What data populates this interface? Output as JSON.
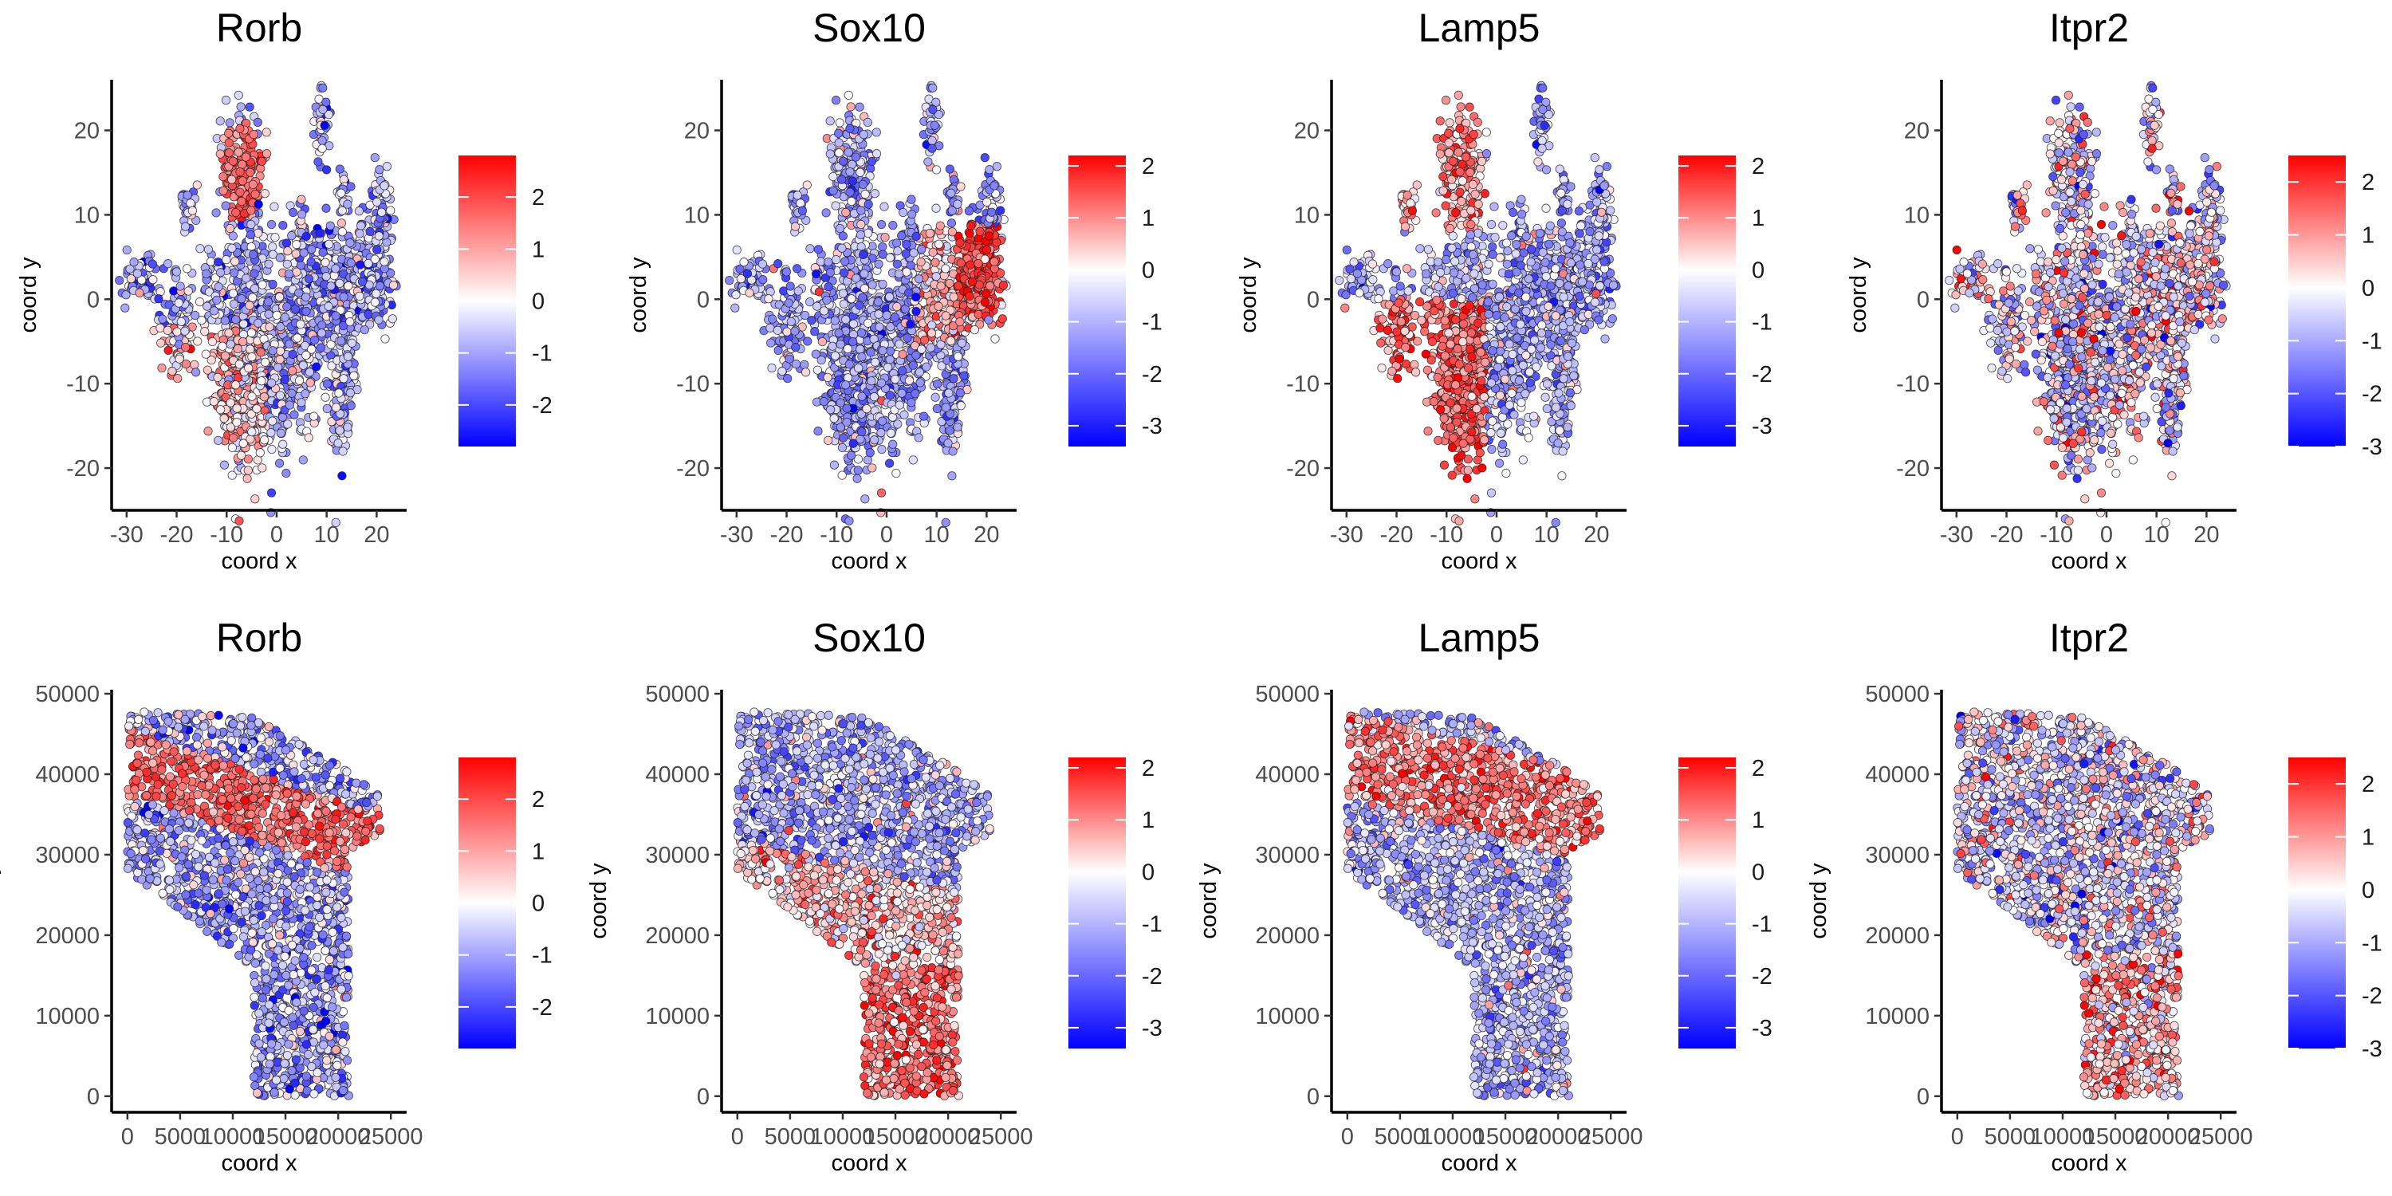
{
  "chart_data": [
    {
      "type": "scatter",
      "title": "Rorb",
      "xlabel": "coord x",
      "ylabel": "coord y",
      "xlim": [
        -33,
        26
      ],
      "ylim": [
        -25,
        26
      ],
      "xticks": [
        -30,
        -20,
        -10,
        0,
        10,
        20
      ],
      "yticks": [
        -20,
        -10,
        0,
        10,
        20
      ],
      "xtick_labels": [
        "-30",
        "-20",
        "-10",
        "0",
        "10",
        "20"
      ],
      "ytick_labels": [
        "-20",
        "-10",
        "0",
        "10",
        "20"
      ],
      "colorbar": {
        "min": -2.8,
        "max": 2.8,
        "ticks": [
          2,
          1,
          0,
          -1,
          -2
        ],
        "tick_labels": [
          "2",
          "1",
          "0",
          "-1",
          "-2"
        ],
        "colors": [
          "#0000ff",
          "#ffffff",
          "#ff0000"
        ]
      },
      "grid": false,
      "legend": "right"
    },
    {
      "type": "scatter",
      "title": "Sox10",
      "xlabel": "coord x",
      "ylabel": "coord y",
      "xlim": [
        -33,
        26
      ],
      "ylim": [
        -25,
        26
      ],
      "xticks": [
        -30,
        -20,
        -10,
        0,
        10,
        20
      ],
      "yticks": [
        -20,
        -10,
        0,
        10,
        20
      ],
      "xtick_labels": [
        "-30",
        "-20",
        "-10",
        "0",
        "10",
        "20"
      ],
      "ytick_labels": [
        "-20",
        "-10",
        "0",
        "10",
        "20"
      ],
      "colorbar": {
        "min": -3.4,
        "max": 2.2,
        "ticks": [
          2,
          1,
          0,
          -1,
          -2,
          -3
        ],
        "tick_labels": [
          "2",
          "1",
          "0",
          "-1",
          "-2",
          "-3"
        ],
        "colors": [
          "#0000ff",
          "#ffffff",
          "#ff0000"
        ]
      },
      "grid": false,
      "legend": "right"
    },
    {
      "type": "scatter",
      "title": "Lamp5",
      "xlabel": "coord x",
      "ylabel": "coord y",
      "xlim": [
        -33,
        26
      ],
      "ylim": [
        -25,
        26
      ],
      "xticks": [
        -30,
        -20,
        -10,
        0,
        10,
        20
      ],
      "yticks": [
        -20,
        -10,
        0,
        10,
        20
      ],
      "xtick_labels": [
        "-30",
        "-20",
        "-10",
        "0",
        "10",
        "20"
      ],
      "ytick_labels": [
        "-20",
        "-10",
        "0",
        "10",
        "20"
      ],
      "colorbar": {
        "min": -3.4,
        "max": 2.2,
        "ticks": [
          2,
          1,
          0,
          -1,
          -2,
          -3
        ],
        "tick_labels": [
          "2",
          "1",
          "0",
          "-1",
          "-2",
          "-3"
        ],
        "colors": [
          "#0000ff",
          "#ffffff",
          "#ff0000"
        ]
      },
      "grid": false,
      "legend": "right"
    },
    {
      "type": "scatter",
      "title": "Itpr2",
      "xlabel": "coord x",
      "ylabel": "coord y",
      "xlim": [
        -33,
        26
      ],
      "ylim": [
        -25,
        26
      ],
      "xticks": [
        -30,
        -20,
        -10,
        0,
        10,
        20
      ],
      "yticks": [
        -20,
        -10,
        0,
        10,
        20
      ],
      "xtick_labels": [
        "-30",
        "-20",
        "-10",
        "0",
        "10",
        "20"
      ],
      "ytick_labels": [
        "-20",
        "-10",
        "0",
        "10",
        "20"
      ],
      "colorbar": {
        "min": -3.0,
        "max": 2.5,
        "ticks": [
          2,
          1,
          0,
          -1,
          -2,
          -3
        ],
        "tick_labels": [
          "2",
          "1",
          "0",
          "-1",
          "-2",
          "-3"
        ],
        "colors": [
          "#0000ff",
          "#ffffff",
          "#ff0000"
        ]
      },
      "grid": false,
      "legend": "right"
    },
    {
      "type": "scatter",
      "title": "Rorb",
      "xlabel": "coord x",
      "ylabel": "coord y",
      "xlim": [
        -1500,
        26500
      ],
      "ylim": [
        -2000,
        50500
      ],
      "xticks": [
        0,
        5000,
        10000,
        15000,
        20000,
        25000
      ],
      "yticks": [
        0,
        10000,
        20000,
        30000,
        40000,
        50000
      ],
      "xtick_labels": [
        "0",
        "5000",
        "10000",
        "15000",
        "20000",
        "25000"
      ],
      "ytick_labels": [
        "0",
        "10000",
        "20000",
        "30000",
        "40000",
        "50000"
      ],
      "colorbar": {
        "min": -2.8,
        "max": 2.8,
        "ticks": [
          2,
          1,
          0,
          -1,
          -2
        ],
        "tick_labels": [
          "2",
          "1",
          "0",
          "-1",
          "-2"
        ],
        "colors": [
          "#0000ff",
          "#ffffff",
          "#ff0000"
        ]
      },
      "grid": false,
      "legend": "right"
    },
    {
      "type": "scatter",
      "title": "Sox10",
      "xlabel": "coord x",
      "ylabel": "coord y",
      "xlim": [
        -1500,
        26500
      ],
      "ylim": [
        -2000,
        50500
      ],
      "xticks": [
        0,
        5000,
        10000,
        15000,
        20000,
        25000
      ],
      "yticks": [
        0,
        10000,
        20000,
        30000,
        40000,
        50000
      ],
      "xtick_labels": [
        "0",
        "5000",
        "10000",
        "15000",
        "20000",
        "25000"
      ],
      "ytick_labels": [
        "0",
        "10000",
        "20000",
        "30000",
        "40000",
        "50000"
      ],
      "colorbar": {
        "min": -3.4,
        "max": 2.2,
        "ticks": [
          2,
          1,
          0,
          -1,
          -2,
          -3
        ],
        "tick_labels": [
          "2",
          "1",
          "0",
          "-1",
          "-2",
          "-3"
        ],
        "colors": [
          "#0000ff",
          "#ffffff",
          "#ff0000"
        ]
      },
      "grid": false,
      "legend": "right"
    },
    {
      "type": "scatter",
      "title": "Lamp5",
      "xlabel": "coord x",
      "ylabel": "coord y",
      "xlim": [
        -1500,
        26500
      ],
      "ylim": [
        -2000,
        50500
      ],
      "xticks": [
        0,
        5000,
        10000,
        15000,
        20000,
        25000
      ],
      "yticks": [
        0,
        10000,
        20000,
        30000,
        40000,
        50000
      ],
      "xtick_labels": [
        "0",
        "5000",
        "10000",
        "15000",
        "20000",
        "25000"
      ],
      "ytick_labels": [
        "0",
        "10000",
        "20000",
        "30000",
        "40000",
        "50000"
      ],
      "colorbar": {
        "min": -3.4,
        "max": 2.2,
        "ticks": [
          2,
          1,
          0,
          -1,
          -2,
          -3
        ],
        "tick_labels": [
          "2",
          "1",
          "0",
          "-1",
          "-2",
          "-3"
        ],
        "colors": [
          "#0000ff",
          "#ffffff",
          "#ff0000"
        ]
      },
      "grid": false,
      "legend": "right"
    },
    {
      "type": "scatter",
      "title": "Itpr2",
      "xlabel": "coord x",
      "ylabel": "coord y",
      "xlim": [
        -1500,
        26500
      ],
      "ylim": [
        -2000,
        50500
      ],
      "xticks": [
        0,
        5000,
        10000,
        15000,
        20000,
        25000
      ],
      "yticks": [
        0,
        10000,
        20000,
        30000,
        40000,
        50000
      ],
      "xtick_labels": [
        "0",
        "5000",
        "10000",
        "15000",
        "20000",
        "25000"
      ],
      "ytick_labels": [
        "0",
        "10000",
        "20000",
        "30000",
        "40000",
        "50000"
      ],
      "colorbar": {
        "min": -3.0,
        "max": 2.5,
        "ticks": [
          2,
          1,
          0,
          -1,
          -2,
          -3
        ],
        "tick_labels": [
          "2",
          "1",
          "0",
          "-1",
          "-2",
          "-3"
        ],
        "colors": [
          "#0000ff",
          "#ffffff",
          "#ff0000"
        ]
      },
      "grid": false,
      "legend": "right"
    }
  ]
}
